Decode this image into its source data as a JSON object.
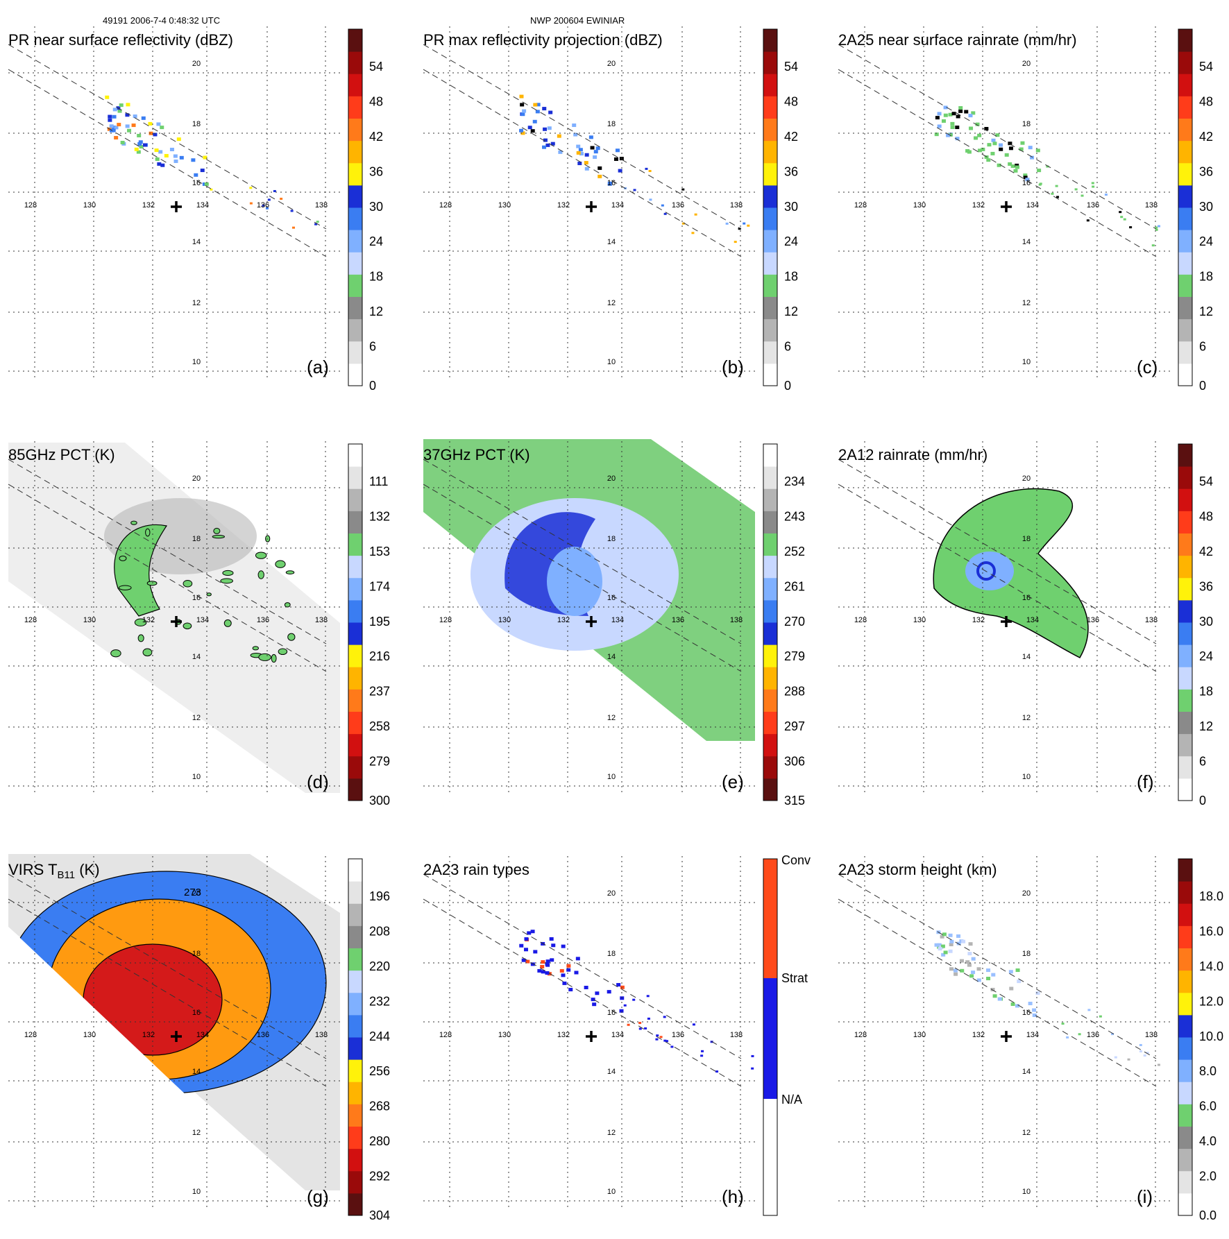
{
  "header": {
    "orbit": "49191 2006-7-4 0:48:32 UTC",
    "storm": "NWP 200604 EWINIAR"
  },
  "axes": {
    "lon_labels": [
      "128",
      "130",
      "132",
      "134",
      "136",
      "138"
    ],
    "lat_labels": [
      "10",
      "12",
      "14",
      "16",
      "18",
      "20"
    ]
  },
  "storm_center": {
    "lon": 132.7,
    "lat": 15.5
  },
  "panels": [
    {
      "id": "a",
      "title": "PR near surface reflectivity (dBZ)",
      "letter": "(a)",
      "kind": "swath",
      "colorbar": {
        "ticks": [
          "54",
          "48",
          "42",
          "36",
          "30",
          "24",
          "18",
          "12",
          "6",
          "0"
        ]
      }
    },
    {
      "id": "b",
      "title": "PR max reflectivity projection (dBZ)",
      "letter": "(b)",
      "kind": "swath",
      "colorbar": {
        "ticks": [
          "54",
          "48",
          "42",
          "36",
          "30",
          "24",
          "18",
          "12",
          "6",
          "0"
        ]
      }
    },
    {
      "id": "c",
      "title": "2A25 near surface rainrate (mm/hr)",
      "letter": "(c)",
      "kind": "swath",
      "colorbar": {
        "ticks": [
          "54",
          "48",
          "42",
          "36",
          "30",
          "24",
          "18",
          "12",
          "6",
          "0"
        ]
      }
    },
    {
      "id": "d",
      "title": "85GHz PCT (K)",
      "letter": "(d)",
      "kind": "tmi",
      "colorbar": {
        "ticks": [
          "111",
          "132",
          "153",
          "174",
          "195",
          "216",
          "237",
          "258",
          "279",
          "300"
        ]
      }
    },
    {
      "id": "e",
      "title": "37GHz PCT (K)",
      "letter": "(e)",
      "kind": "tmi",
      "colorbar": {
        "ticks": [
          "234",
          "243",
          "252",
          "261",
          "270",
          "279",
          "288",
          "297",
          "306",
          "315"
        ]
      }
    },
    {
      "id": "f",
      "title": "2A12 rainrate (mm/hr)",
      "letter": "(f)",
      "kind": "tmi",
      "colorbar": {
        "ticks": [
          "54",
          "48",
          "42",
          "36",
          "30",
          "24",
          "18",
          "12",
          "6",
          "0"
        ]
      }
    },
    {
      "id": "g",
      "title": "VIRS T",
      "title_sub": "B11",
      "title_suffix": " (K)",
      "letter": "(g)",
      "kind": "virs",
      "contour_label": "273",
      "colorbar": {
        "ticks": [
          "196",
          "208",
          "220",
          "232",
          "244",
          "256",
          "268",
          "280",
          "292",
          "304"
        ]
      }
    },
    {
      "id": "h",
      "title": "2A23 rain types",
      "letter": "(h)",
      "kind": "swath",
      "colorbar": {
        "ticks": [
          "Conv",
          "Strat",
          "N/A"
        ]
      }
    },
    {
      "id": "i",
      "title": "2A23 storm height (km)",
      "letter": "(i)",
      "kind": "swath",
      "colorbar": {
        "ticks": [
          "18.0",
          "16.0",
          "14.0",
          "12.0",
          "10.0",
          "8.0",
          "6.0",
          "4.0",
          "2.0",
          "0.0"
        ]
      }
    }
  ],
  "colors": {
    "colorbar_standard": [
      "#ffffff",
      "#e4e4e4",
      "#b4b4b4",
      "#8a8a8a",
      "#6fd06f",
      "#c8d8ff",
      "#7fb0ff",
      "#3a7df2",
      "#1a2fd6",
      "#fff20a",
      "#ffb400",
      "#ff7a1a",
      "#ff3c1a",
      "#d21010",
      "#9a0a0a",
      "#5a1010"
    ],
    "colorbar_temperature": [
      "#5a1010",
      "#9a0a0a",
      "#d21010",
      "#ff3c1a",
      "#ff7a1a",
      "#ffb400",
      "#fff20a",
      "#1a2fd6",
      "#3a7df2",
      "#7fb0ff",
      "#c8d8ff",
      "#6fd06f",
      "#8a8a8a",
      "#b4b4b4",
      "#e4e4e4",
      "#ffffff"
    ],
    "colorbar_raintype": [
      "#ffffff",
      "#1a1ae6",
      "#ff4a1a"
    ],
    "tmi_bg_85": "#eeeeee",
    "tmi_bg_37": "#7fd07f",
    "virs_bg": "#e4e4e4",
    "virs_warm": "#ff9a10",
    "virs_core": "#d41a1a"
  }
}
